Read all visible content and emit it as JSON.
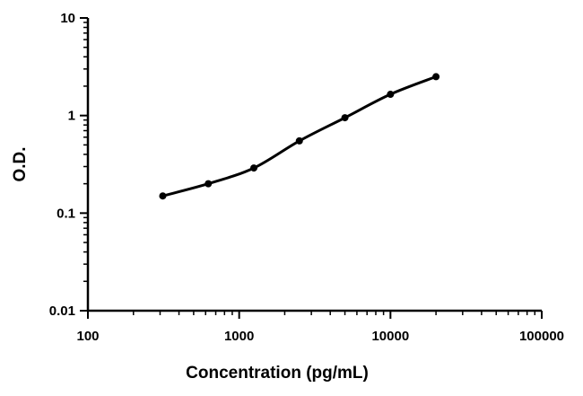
{
  "chart_data": {
    "type": "line",
    "title": "",
    "xlabel": "Concentration (pg/mL)",
    "ylabel": "O.D.",
    "xscale": "log",
    "yscale": "log",
    "xlim": [
      100,
      100000
    ],
    "ylim": [
      0.01,
      10
    ],
    "x_ticks": [
      "100",
      "1000",
      "10000",
      "100000"
    ],
    "y_ticks": [
      "0.01",
      "0.1",
      "1",
      "10"
    ],
    "grid": false,
    "legend": "none",
    "series": [
      {
        "x": [
          312.5,
          625,
          1250,
          2500,
          5000,
          10000,
          20000
        ],
        "y": [
          0.15,
          0.2,
          0.29,
          0.55,
          0.95,
          1.65,
          2.5
        ],
        "marker": "circle",
        "line": "smooth",
        "color": "#000000"
      }
    ]
  }
}
